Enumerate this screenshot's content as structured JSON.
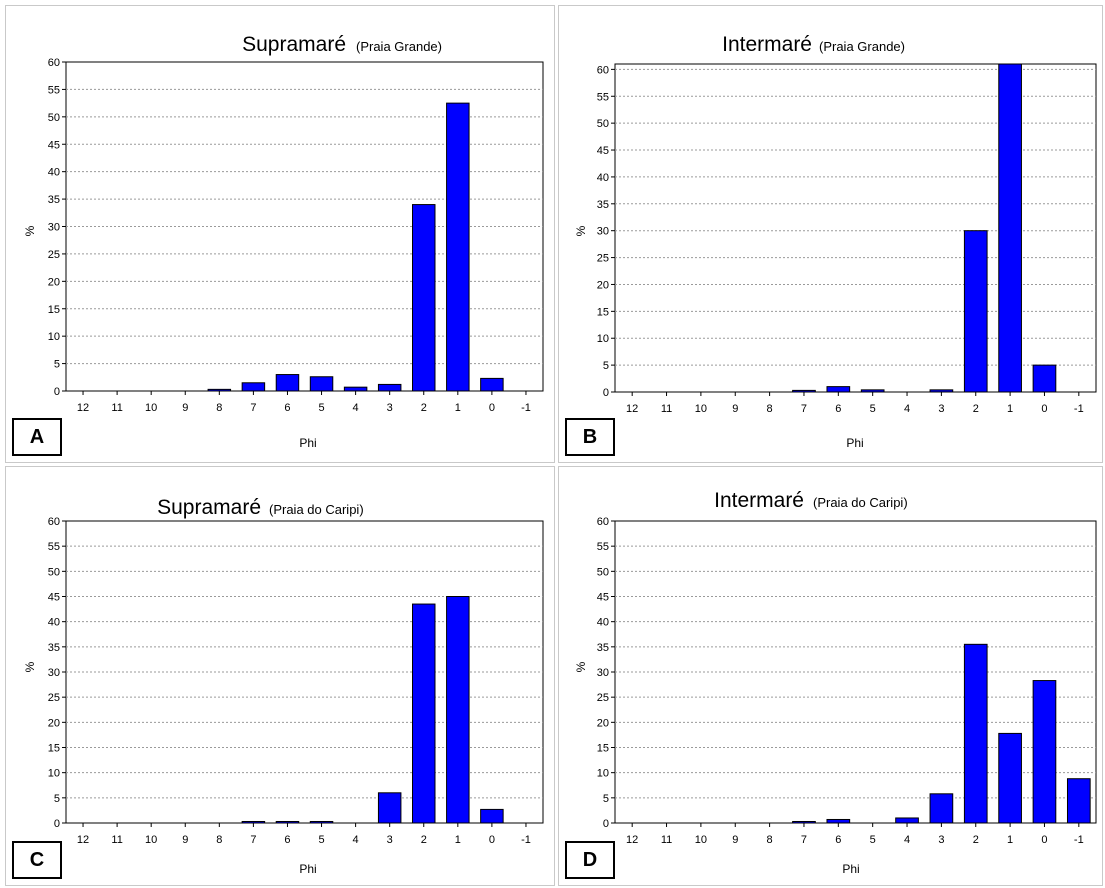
{
  "colors": {
    "bar": "#0000ff",
    "bar_outline": "#000000",
    "grid": "#9a9a9a"
  },
  "chart_data": [
    {
      "panel_label": "A",
      "type": "bar",
      "title": "Supramaré",
      "subtitle": "(Praia Grande)",
      "xlabel": "Phi",
      "ylabel": "%",
      "categories": [
        "12",
        "11",
        "10",
        "9",
        "8",
        "7",
        "6",
        "5",
        "4",
        "3",
        "2",
        "1",
        "0",
        "-1"
      ],
      "values": [
        0,
        0,
        0,
        0,
        0.3,
        1.5,
        3,
        2.6,
        0.7,
        1.2,
        34,
        52.5,
        2.3,
        0
      ],
      "ylim": [
        0,
        60
      ],
      "yticks": [
        "0",
        "5",
        "10",
        "15",
        "20",
        "25",
        "30",
        "35",
        "40",
        "45",
        "50",
        "55",
        "60"
      ],
      "grid": true
    },
    {
      "panel_label": "B",
      "type": "bar",
      "title": "Intermaré",
      "subtitle": "(Praia Grande)",
      "xlabel": "Phi",
      "ylabel": "%",
      "categories": [
        "12",
        "11",
        "10",
        "9",
        "8",
        "7",
        "6",
        "5",
        "4",
        "3",
        "2",
        "1",
        "0",
        "-1"
      ],
      "values": [
        0,
        0,
        0,
        0,
        0,
        0.3,
        1,
        0.4,
        0,
        0.4,
        30,
        61,
        5,
        0
      ],
      "ylim": [
        0,
        61
      ],
      "yticks": [
        "0",
        "5",
        "10",
        "15",
        "20",
        "25",
        "30",
        "35",
        "40",
        "45",
        "50",
        "55",
        "60"
      ],
      "grid": true
    },
    {
      "panel_label": "C",
      "type": "bar",
      "title": "Supramaré",
      "subtitle": "(Praia do Caripi)",
      "xlabel": "Phi",
      "ylabel": "%",
      "categories": [
        "12",
        "11",
        "10",
        "9",
        "8",
        "7",
        "6",
        "5",
        "4",
        "3",
        "2",
        "1",
        "0",
        "-1"
      ],
      "values": [
        0,
        0,
        0,
        0,
        0,
        0.3,
        0.3,
        0.3,
        0,
        6,
        43.5,
        45,
        2.7,
        0
      ],
      "ylim": [
        0,
        60
      ],
      "yticks": [
        "0",
        "5",
        "10",
        "15",
        "20",
        "25",
        "30",
        "35",
        "40",
        "45",
        "50",
        "55",
        "60"
      ],
      "grid": true
    },
    {
      "panel_label": "D",
      "type": "bar",
      "title": "Intermaré",
      "subtitle": "(Praia do Caripi)",
      "xlabel": "Phi",
      "ylabel": "%",
      "categories": [
        "12",
        "11",
        "10",
        "9",
        "8",
        "7",
        "6",
        "5",
        "4",
        "3",
        "2",
        "1",
        "0",
        "-1"
      ],
      "values": [
        0,
        0,
        0,
        0,
        0,
        0.3,
        0.7,
        0,
        1,
        5.8,
        35.5,
        17.8,
        28.3,
        8.8
      ],
      "ylim": [
        0,
        60
      ],
      "yticks": [
        "0",
        "5",
        "10",
        "15",
        "20",
        "25",
        "30",
        "35",
        "40",
        "45",
        "50",
        "55",
        "60"
      ],
      "grid": true
    }
  ]
}
